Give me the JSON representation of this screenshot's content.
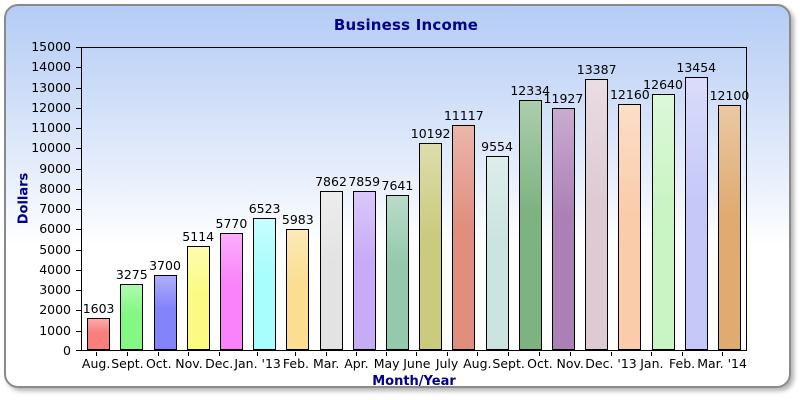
{
  "chart_data": {
    "type": "bar",
    "title": "Business Income",
    "xlabel": "Month/Year",
    "ylabel": "Dollars",
    "ylim": [
      0,
      15000
    ],
    "ytick_step": 1000,
    "grid": false,
    "legend": "none",
    "categories": [
      "Aug.",
      "Sept.",
      "Oct.",
      "Nov.",
      "Dec.",
      "Jan. '13",
      "Feb.",
      "Mar.",
      "Apr.",
      "May",
      "June",
      "July",
      "Aug.",
      "Sept.",
      "Oct.",
      "Nov.",
      "Dec. '13",
      "Jan.",
      "Feb.",
      "Mar. '14"
    ],
    "values": [
      1603,
      3275,
      3700,
      5114,
      5770,
      6523,
      5983,
      7862,
      7859,
      7641,
      10192,
      11117,
      9554,
      12334,
      11927,
      13387,
      12160,
      12640,
      13454,
      12100
    ],
    "bar_colors": [
      "#f97e7e",
      "#83f883",
      "#8383fa",
      "#fbfb83",
      "#fa82fa",
      "#a8fdfd",
      "#fbde92",
      "#e3e3e3",
      "#c6abf7",
      "#94c9ad",
      "#cbcb7e",
      "#e08f7e",
      "#cbe4e0",
      "#7db380",
      "#ab80b5",
      "#decad3",
      "#faccaa",
      "#c9f4c4",
      "#c6c9f8",
      "#dfab71"
    ],
    "colors": {
      "title_text": "#00008b",
      "axis_title_text": "#00008b",
      "tick_label_text": "#000000",
      "plot_border": "#000000",
      "bar_border": "#000000",
      "panel_border": "#8a8a8a",
      "panel_bg_top": "#b4ccf5",
      "panel_bg_bottom": "#ffffff"
    }
  }
}
